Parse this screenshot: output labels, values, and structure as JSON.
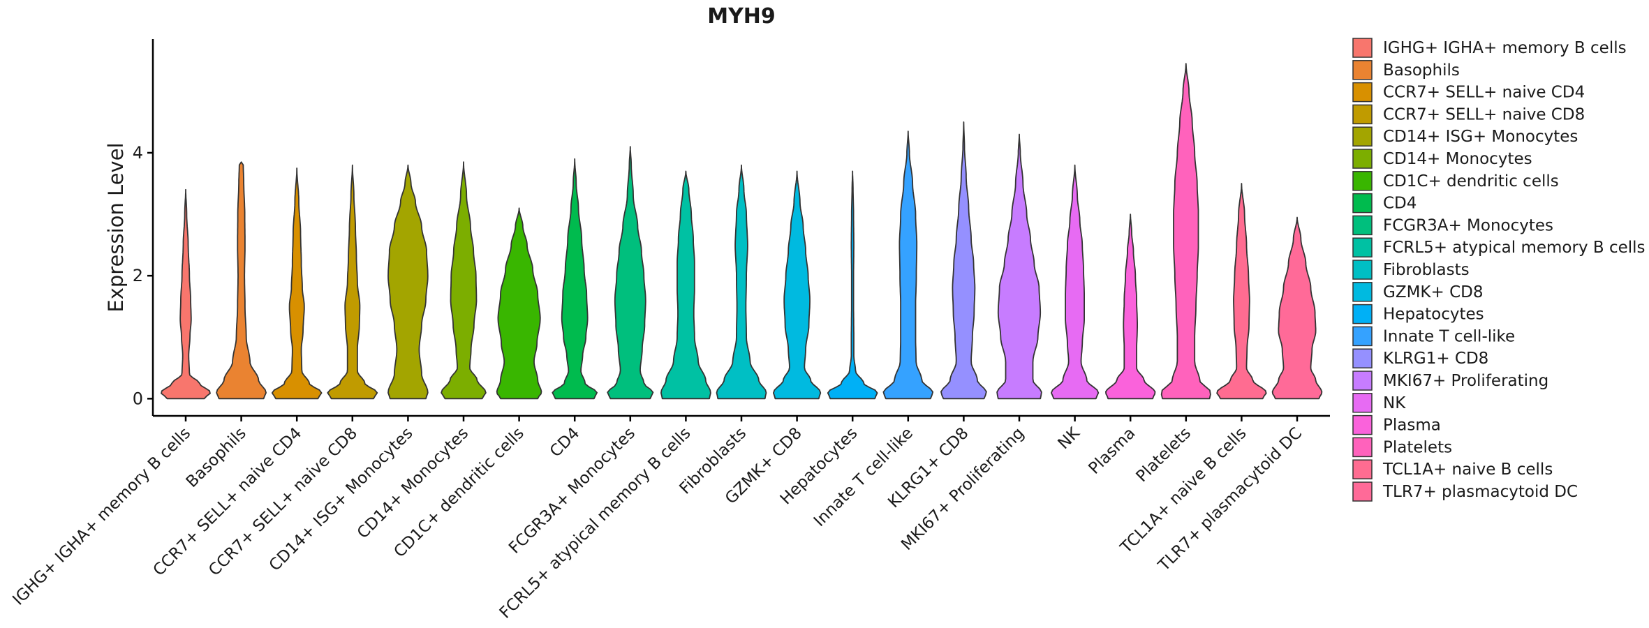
{
  "chart_data": {
    "type": "violin",
    "title": "MYH9",
    "xlabel": "",
    "ylabel": "Expression Level",
    "ylim": [
      -0.28,
      5.85
    ],
    "yticks": [
      0,
      2,
      4
    ],
    "legend_position": "right",
    "grid": false,
    "categories": [
      "IGHG+ IGHA+ memory B cells",
      "Basophils",
      "CCR7+ SELL+ naive CD4",
      "CCR7+ SELL+ naive CD8",
      "CD14+ ISG+ Monocytes",
      "CD14+ Monocytes",
      "CD1C+ dendritic cells",
      "CD4",
      "FCGR3A+ Monocytes",
      "FCRL5+ atypical memory B cells",
      "Fibroblasts",
      "GZMK+ CD8",
      "Hepatocytes",
      "Innate T cell-like",
      "KLRG1+ CD8",
      "MKI67+ Proliferating",
      "NK",
      "Plasma",
      "Platelets",
      "TCL1A+ naive B cells",
      "TLR7+ plasmacytoid DC"
    ],
    "legend_labels": [
      " IGHG+ IGHA+ memory B cells",
      "Basophils",
      "CCR7+ SELL+ naive CD4",
      "CCR7+ SELL+ naive CD8",
      "CD14+ ISG+ Monocytes",
      "CD14+ Monocytes",
      "CD1C+ dendritic cells",
      "CD4",
      "FCGR3A+ Monocytes",
      "FCRL5+ atypical memory B cells",
      "Fibroblasts",
      "GZMK+ CD8",
      "Hepatocytes",
      "Innate T cell-like",
      "KLRG1+ CD8",
      "MKI67+ Proliferating",
      "NK",
      "Plasma",
      "Platelets",
      "TCL1A+ naive B cells",
      "TLR7+ plasmacytoid DC"
    ],
    "colors": [
      "#F8766D",
      "#EA8331",
      "#D89000",
      "#C09B00",
      "#A3A500",
      "#7CAE00",
      "#39B600",
      "#00BB4E",
      "#00BF7D",
      "#00C1A3",
      "#00BFC4",
      "#00BAE0",
      "#00B0F6",
      "#35A2FF",
      "#9590FF",
      "#C77CFF",
      "#E76BF3",
      "#FA62DB",
      "#FF62BC",
      "#FF6C91",
      "#FF6A98"
    ],
    "series": [
      {
        "name": "IGHG+ IGHA+ memory B cells",
        "max": 3.4,
        "profile": [
          [
            0,
            0.75
          ],
          [
            0.1,
            1.0
          ],
          [
            0.25,
            0.55
          ],
          [
            0.4,
            0.15
          ],
          [
            0.7,
            0.12
          ],
          [
            1.0,
            0.17
          ],
          [
            1.3,
            0.22
          ],
          [
            1.6,
            0.2
          ],
          [
            2.0,
            0.15
          ],
          [
            2.5,
            0.1
          ],
          [
            3.0,
            0.04
          ],
          [
            3.4,
            0.0
          ]
        ]
      },
      {
        "name": "Basophils",
        "max": 3.85,
        "profile": [
          [
            0,
            0.9
          ],
          [
            0.1,
            1.0
          ],
          [
            0.3,
            0.7
          ],
          [
            0.6,
            0.35
          ],
          [
            1.0,
            0.2
          ],
          [
            1.5,
            0.15
          ],
          [
            2.0,
            0.13
          ],
          [
            2.5,
            0.15
          ],
          [
            3.0,
            0.14
          ],
          [
            3.5,
            0.1
          ],
          [
            3.8,
            0.08
          ],
          [
            3.85,
            0.0
          ]
        ]
      },
      {
        "name": "CCR7+ SELL+ naive CD4",
        "max": 3.75,
        "profile": [
          [
            0,
            0.85
          ],
          [
            0.1,
            1.0
          ],
          [
            0.25,
            0.5
          ],
          [
            0.45,
            0.2
          ],
          [
            0.8,
            0.18
          ],
          [
            1.1,
            0.25
          ],
          [
            1.5,
            0.3
          ],
          [
            1.8,
            0.22
          ],
          [
            2.2,
            0.18
          ],
          [
            2.7,
            0.15
          ],
          [
            3.2,
            0.08
          ],
          [
            3.75,
            0.0
          ]
        ]
      },
      {
        "name": "CCR7+ SELL+ naive CD8",
        "max": 3.8,
        "profile": [
          [
            0,
            0.85
          ],
          [
            0.1,
            1.0
          ],
          [
            0.25,
            0.5
          ],
          [
            0.45,
            0.2
          ],
          [
            0.8,
            0.2
          ],
          [
            1.2,
            0.28
          ],
          [
            1.5,
            0.3
          ],
          [
            1.9,
            0.2
          ],
          [
            2.3,
            0.16
          ],
          [
            2.8,
            0.12
          ],
          [
            3.3,
            0.06
          ],
          [
            3.8,
            0.0
          ]
        ]
      },
      {
        "name": "CD14+ ISG+ Monocytes",
        "max": 3.8,
        "profile": [
          [
            0,
            0.72
          ],
          [
            0.1,
            0.8
          ],
          [
            0.4,
            0.55
          ],
          [
            0.8,
            0.45
          ],
          [
            1.2,
            0.55
          ],
          [
            1.6,
            0.72
          ],
          [
            2.0,
            0.8
          ],
          [
            2.4,
            0.75
          ],
          [
            2.8,
            0.55
          ],
          [
            3.2,
            0.3
          ],
          [
            3.5,
            0.12
          ],
          [
            3.8,
            0.0
          ]
        ]
      },
      {
        "name": "CD14+ Monocytes",
        "max": 3.85,
        "profile": [
          [
            0,
            0.75
          ],
          [
            0.1,
            0.9
          ],
          [
            0.3,
            0.55
          ],
          [
            0.5,
            0.25
          ],
          [
            0.8,
            0.3
          ],
          [
            1.2,
            0.42
          ],
          [
            1.6,
            0.52
          ],
          [
            2.0,
            0.5
          ],
          [
            2.4,
            0.4
          ],
          [
            2.8,
            0.28
          ],
          [
            3.3,
            0.12
          ],
          [
            3.85,
            0.0
          ]
        ]
      },
      {
        "name": "CD1C+ dendritic cells",
        "max": 3.1,
        "profile": [
          [
            0,
            0.75
          ],
          [
            0.1,
            0.9
          ],
          [
            0.3,
            0.75
          ],
          [
            0.6,
            0.6
          ],
          [
            0.9,
            0.72
          ],
          [
            1.3,
            0.85
          ],
          [
            1.7,
            0.75
          ],
          [
            2.1,
            0.55
          ],
          [
            2.5,
            0.32
          ],
          [
            2.8,
            0.15
          ],
          [
            3.1,
            0.0
          ]
        ]
      },
      {
        "name": "CD4",
        "max": 3.9,
        "profile": [
          [
            0,
            0.78
          ],
          [
            0.1,
            0.9
          ],
          [
            0.25,
            0.42
          ],
          [
            0.45,
            0.25
          ],
          [
            0.7,
            0.32
          ],
          [
            1.0,
            0.45
          ],
          [
            1.3,
            0.52
          ],
          [
            1.7,
            0.48
          ],
          [
            2.1,
            0.38
          ],
          [
            2.6,
            0.28
          ],
          [
            3.1,
            0.15
          ],
          [
            3.5,
            0.06
          ],
          [
            3.9,
            0.0
          ]
        ]
      },
      {
        "name": "FCGR3A+ Monocytes",
        "max": 4.1,
        "profile": [
          [
            0,
            0.8
          ],
          [
            0.1,
            0.92
          ],
          [
            0.25,
            0.55
          ],
          [
            0.45,
            0.4
          ],
          [
            0.8,
            0.48
          ],
          [
            1.2,
            0.58
          ],
          [
            1.6,
            0.62
          ],
          [
            2.0,
            0.55
          ],
          [
            2.4,
            0.45
          ],
          [
            2.8,
            0.3
          ],
          [
            3.3,
            0.12
          ],
          [
            3.8,
            0.04
          ],
          [
            4.1,
            0.0
          ]
        ]
      },
      {
        "name": "FCRL5+ atypical memory B cells",
        "max": 3.7,
        "profile": [
          [
            0,
            0.95
          ],
          [
            0.1,
            1.0
          ],
          [
            0.3,
            0.8
          ],
          [
            0.6,
            0.5
          ],
          [
            1.0,
            0.35
          ],
          [
            1.4,
            0.32
          ],
          [
            1.8,
            0.35
          ],
          [
            2.2,
            0.35
          ],
          [
            2.6,
            0.3
          ],
          [
            3.0,
            0.22
          ],
          [
            3.4,
            0.12
          ],
          [
            3.7,
            0.0
          ]
        ]
      },
      {
        "name": "Fibroblasts",
        "max": 3.8,
        "profile": [
          [
            0,
            0.95
          ],
          [
            0.1,
            1.0
          ],
          [
            0.3,
            0.7
          ],
          [
            0.6,
            0.35
          ],
          [
            1.0,
            0.2
          ],
          [
            1.5,
            0.18
          ],
          [
            2.0,
            0.2
          ],
          [
            2.5,
            0.25
          ],
          [
            3.0,
            0.2
          ],
          [
            3.4,
            0.1
          ],
          [
            3.8,
            0.0
          ]
        ]
      },
      {
        "name": "GZMK+ CD8",
        "max": 3.7,
        "profile": [
          [
            0,
            0.88
          ],
          [
            0.1,
            0.95
          ],
          [
            0.3,
            0.55
          ],
          [
            0.5,
            0.3
          ],
          [
            0.8,
            0.35
          ],
          [
            1.2,
            0.48
          ],
          [
            1.6,
            0.52
          ],
          [
            2.0,
            0.45
          ],
          [
            2.4,
            0.35
          ],
          [
            2.8,
            0.25
          ],
          [
            3.2,
            0.12
          ],
          [
            3.7,
            0.0
          ]
        ]
      },
      {
        "name": "Hepatocytes",
        "max": 3.7,
        "profile": [
          [
            0,
            0.9
          ],
          [
            0.1,
            1.0
          ],
          [
            0.25,
            0.45
          ],
          [
            0.45,
            0.12
          ],
          [
            0.7,
            0.05
          ],
          [
            1.0,
            0.05
          ],
          [
            1.5,
            0.04
          ],
          [
            2.0,
            0.04
          ],
          [
            2.5,
            0.05
          ],
          [
            3.0,
            0.04
          ],
          [
            3.4,
            0.02
          ],
          [
            3.7,
            0.0
          ]
        ]
      },
      {
        "name": "Innate T cell-like",
        "max": 4.35,
        "profile": [
          [
            0,
            0.9
          ],
          [
            0.1,
            1.0
          ],
          [
            0.3,
            0.55
          ],
          [
            0.6,
            0.32
          ],
          [
            1.0,
            0.3
          ],
          [
            1.5,
            0.3
          ],
          [
            2.0,
            0.33
          ],
          [
            2.5,
            0.35
          ],
          [
            3.0,
            0.3
          ],
          [
            3.5,
            0.18
          ],
          [
            4.0,
            0.05
          ],
          [
            4.35,
            0.0
          ]
        ]
      },
      {
        "name": "KLRG1+ CD8",
        "max": 4.5,
        "profile": [
          [
            0,
            0.82
          ],
          [
            0.1,
            0.92
          ],
          [
            0.3,
            0.55
          ],
          [
            0.6,
            0.3
          ],
          [
            1.0,
            0.35
          ],
          [
            1.4,
            0.42
          ],
          [
            1.8,
            0.45
          ],
          [
            2.2,
            0.4
          ],
          [
            2.6,
            0.3
          ],
          [
            3.1,
            0.2
          ],
          [
            3.6,
            0.1
          ],
          [
            4.1,
            0.03
          ],
          [
            4.5,
            0.0
          ]
        ]
      },
      {
        "name": "MKI67+ Proliferating",
        "max": 4.3,
        "profile": [
          [
            0,
            0.85
          ],
          [
            0.1,
            0.9
          ],
          [
            0.3,
            0.55
          ],
          [
            0.6,
            0.55
          ],
          [
            1.0,
            0.75
          ],
          [
            1.4,
            0.85
          ],
          [
            1.8,
            0.8
          ],
          [
            2.2,
            0.6
          ],
          [
            2.6,
            0.45
          ],
          [
            3.0,
            0.3
          ],
          [
            3.5,
            0.15
          ],
          [
            4.0,
            0.04
          ],
          [
            4.3,
            0.0
          ]
        ]
      },
      {
        "name": "NK",
        "max": 3.8,
        "profile": [
          [
            0,
            0.85
          ],
          [
            0.1,
            0.95
          ],
          [
            0.3,
            0.48
          ],
          [
            0.6,
            0.25
          ],
          [
            0.9,
            0.3
          ],
          [
            1.3,
            0.38
          ],
          [
            1.7,
            0.38
          ],
          [
            2.1,
            0.35
          ],
          [
            2.5,
            0.3
          ],
          [
            2.9,
            0.2
          ],
          [
            3.3,
            0.1
          ],
          [
            3.8,
            0.0
          ]
        ]
      },
      {
        "name": "Plasma",
        "max": 3.0,
        "profile": [
          [
            0,
            0.9
          ],
          [
            0.1,
            1.0
          ],
          [
            0.3,
            0.55
          ],
          [
            0.5,
            0.25
          ],
          [
            0.8,
            0.25
          ],
          [
            1.2,
            0.28
          ],
          [
            1.6,
            0.25
          ],
          [
            2.0,
            0.2
          ],
          [
            2.4,
            0.12
          ],
          [
            2.7,
            0.05
          ],
          [
            3.0,
            0.0
          ]
        ]
      },
      {
        "name": "Platelets",
        "max": 5.45,
        "profile": [
          [
            0,
            0.95
          ],
          [
            0.1,
            1.0
          ],
          [
            0.3,
            0.55
          ],
          [
            0.6,
            0.35
          ],
          [
            1.0,
            0.35
          ],
          [
            1.5,
            0.4
          ],
          [
            2.0,
            0.45
          ],
          [
            2.5,
            0.5
          ],
          [
            3.0,
            0.5
          ],
          [
            3.5,
            0.45
          ],
          [
            4.0,
            0.35
          ],
          [
            4.5,
            0.25
          ],
          [
            5.0,
            0.12
          ],
          [
            5.45,
            0.0
          ]
        ]
      },
      {
        "name": "TCL1A+ naive B cells",
        "max": 3.5,
        "profile": [
          [
            0,
            0.85
          ],
          [
            0.1,
            1.0
          ],
          [
            0.3,
            0.45
          ],
          [
            0.5,
            0.2
          ],
          [
            0.8,
            0.22
          ],
          [
            1.2,
            0.3
          ],
          [
            1.6,
            0.32
          ],
          [
            2.0,
            0.28
          ],
          [
            2.5,
            0.2
          ],
          [
            3.0,
            0.12
          ],
          [
            3.5,
            0.0
          ]
        ]
      },
      {
        "name": "TLR7+ plasmacytoid DC",
        "max": 2.95,
        "profile": [
          [
            0,
            0.88
          ],
          [
            0.1,
            1.0
          ],
          [
            0.3,
            0.75
          ],
          [
            0.5,
            0.55
          ],
          [
            0.8,
            0.6
          ],
          [
            1.1,
            0.75
          ],
          [
            1.4,
            0.72
          ],
          [
            1.8,
            0.55
          ],
          [
            2.2,
            0.35
          ],
          [
            2.6,
            0.15
          ],
          [
            2.95,
            0.0
          ]
        ]
      }
    ]
  }
}
